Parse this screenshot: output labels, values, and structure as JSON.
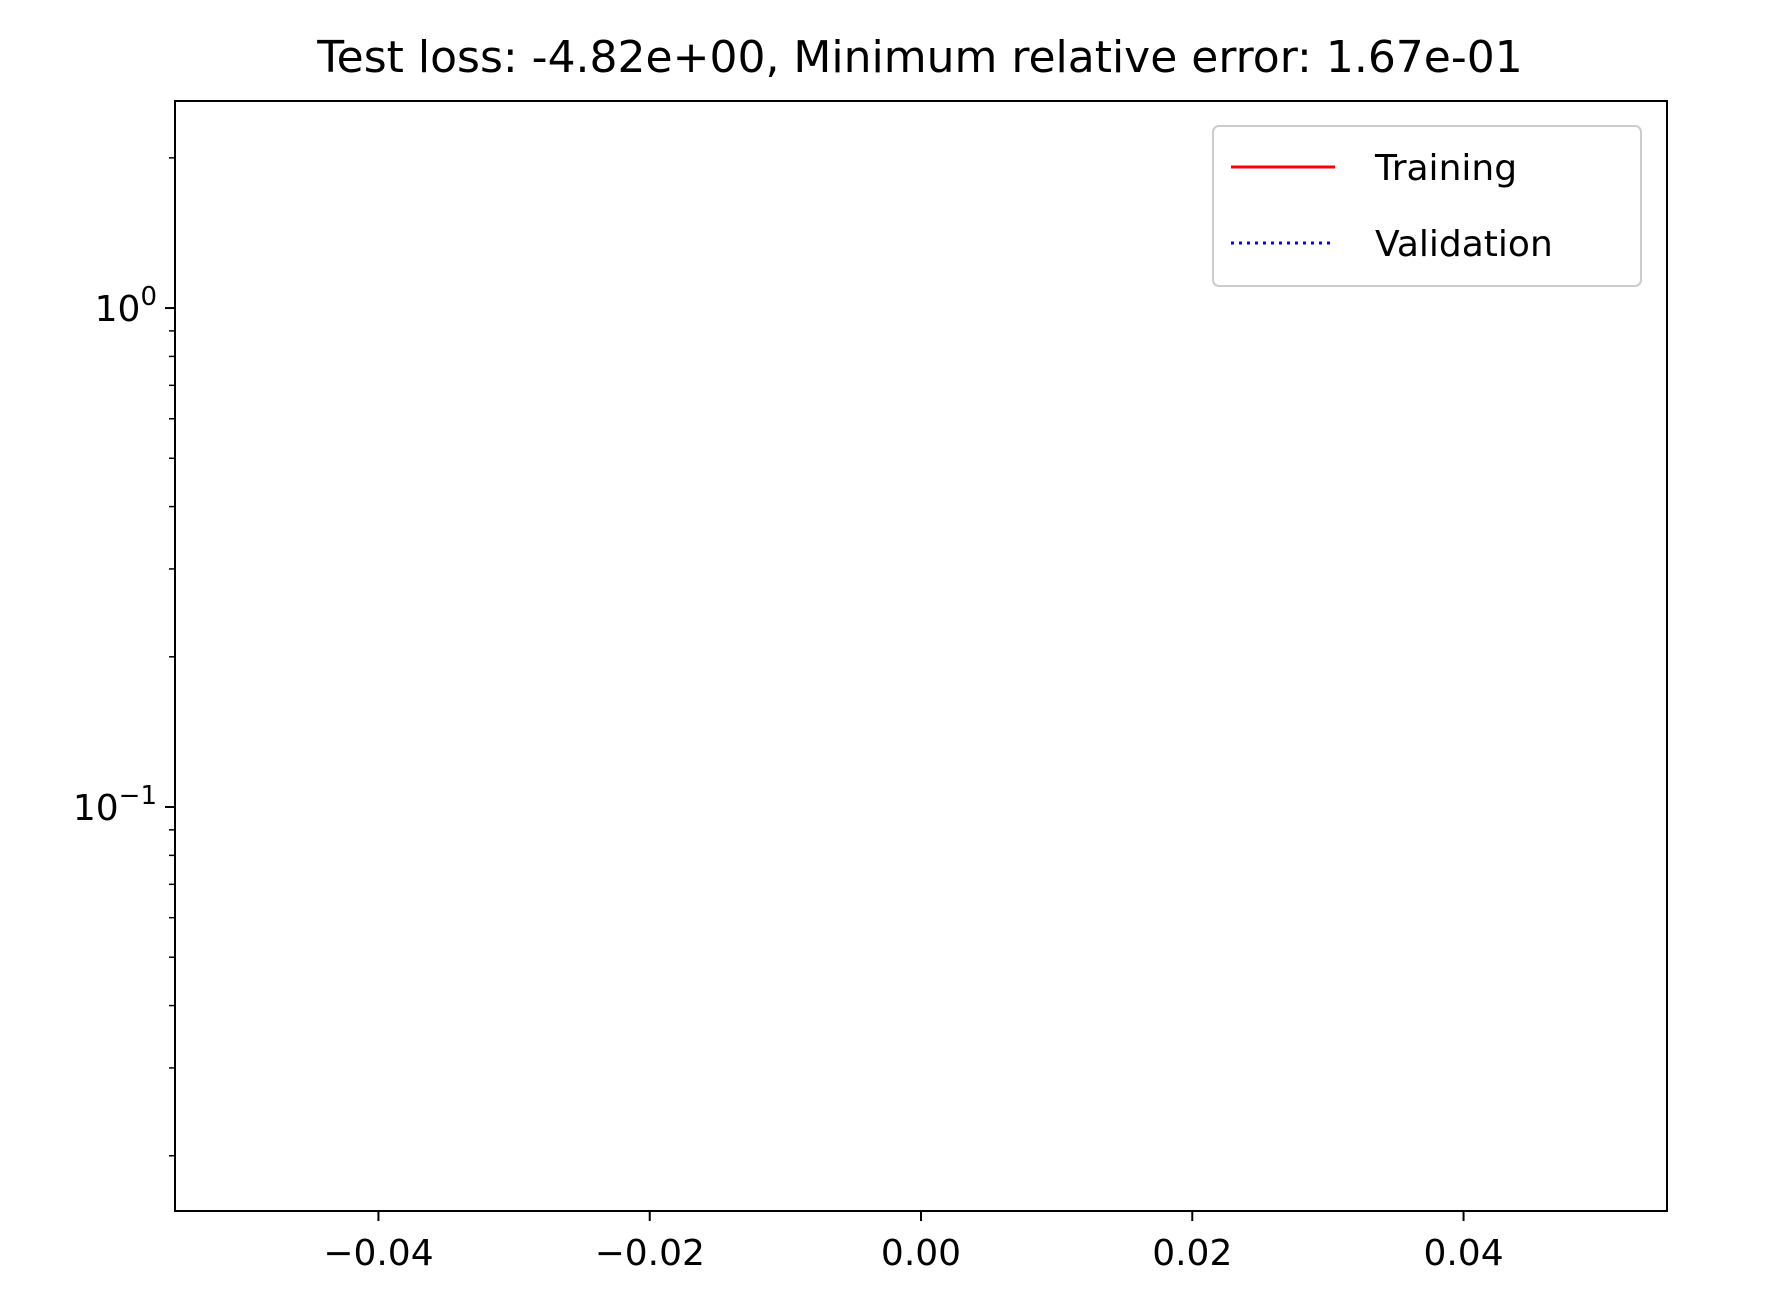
{
  "chart_data": {
    "type": "line",
    "title": "Test loss: -4.82e+00, Minimum relative error: 1.67e-01",
    "xlabel": "",
    "ylabel": "",
    "xlim": [
      -0.055,
      0.055
    ],
    "ylim": [
      0.0155,
      2.6
    ],
    "yscale": "log",
    "x_ticks": [
      {
        "value": -0.04,
        "label": "−0.04"
      },
      {
        "value": -0.02,
        "label": "−0.02"
      },
      {
        "value": 0.0,
        "label": "0.00"
      },
      {
        "value": 0.02,
        "label": "0.02"
      },
      {
        "value": 0.04,
        "label": "0.04"
      }
    ],
    "y_ticks": [
      {
        "value": 1,
        "base": "10",
        "exp": "0"
      },
      {
        "value": 0.1,
        "base": "10",
        "exp": "−1"
      }
    ],
    "y_minor_ticks": [
      2,
      0.9,
      0.8,
      0.7,
      0.6,
      0.5,
      0.4,
      0.3,
      0.2,
      0.09,
      0.08,
      0.07,
      0.06,
      0.05,
      0.04,
      0.03,
      0.02
    ],
    "grid": false,
    "legend_position": "top-right",
    "series": [
      {
        "name": "Training",
        "color": "#ff0000",
        "style": "solid",
        "x": [],
        "y": []
      },
      {
        "name": "Validation",
        "color": "#0000ff",
        "style": "dotted",
        "x": [],
        "y": []
      }
    ]
  }
}
